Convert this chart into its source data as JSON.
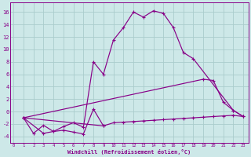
{
  "background_color": "#cde8e8",
  "grid_color": "#aacccc",
  "line_color": "#880088",
  "xlabel": "Windchill (Refroidissement éolien,°C)",
  "ylim": [
    -5,
    17.5
  ],
  "xlim": [
    -0.3,
    23.5
  ],
  "yticks": [
    -4,
    -2,
    0,
    2,
    4,
    6,
    8,
    10,
    12,
    14,
    16
  ],
  "xticks": [
    0,
    1,
    2,
    3,
    4,
    5,
    6,
    7,
    8,
    9,
    10,
    11,
    12,
    13,
    14,
    15,
    16,
    17,
    18,
    19,
    20,
    21,
    22,
    23
  ],
  "line_upper_x": [
    1,
    3,
    4,
    5,
    6,
    7,
    8,
    9,
    10,
    11,
    12,
    13,
    14,
    15,
    16,
    17,
    18,
    22,
    23
  ],
  "line_upper_y": [
    -1,
    -3.5,
    -3.2,
    -2.4,
    -1.8,
    -2.5,
    8.0,
    6.0,
    11.5,
    13.5,
    16.0,
    15.2,
    16.2,
    15.8,
    13.5,
    9.5,
    8.5,
    0.2,
    -0.8
  ],
  "line_zigzag_x": [
    1,
    2,
    3,
    4,
    5,
    6,
    7,
    8,
    9
  ],
  "line_zigzag_y": [
    -1,
    -3.5,
    -2.2,
    -3.2,
    -3.0,
    -3.3,
    -3.6,
    0.4,
    -2.3
  ],
  "line_flat_x": [
    1,
    9,
    10,
    11,
    12,
    13,
    14,
    15,
    16,
    17,
    18,
    19,
    20,
    21,
    22,
    23
  ],
  "line_flat_y": [
    -1,
    -2.3,
    -1.8,
    -1.7,
    -1.6,
    -1.5,
    -1.4,
    -1.3,
    -1.2,
    -1.1,
    -1.0,
    -0.9,
    -0.8,
    -0.7,
    -0.6,
    -0.8
  ],
  "line_diag_x": [
    1,
    19,
    20,
    21,
    22,
    23
  ],
  "line_diag_y": [
    -1,
    5.2,
    5.0,
    1.5,
    0.2,
    -0.8
  ]
}
